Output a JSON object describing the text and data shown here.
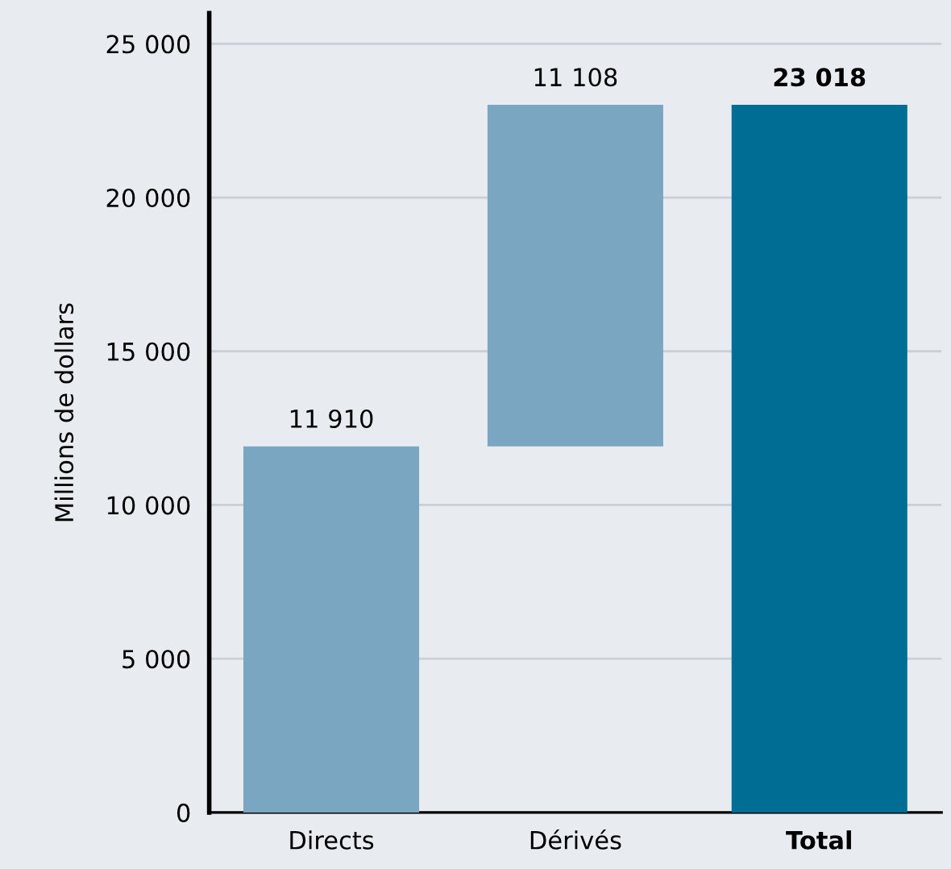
{
  "chart_data": {
    "type": "bar",
    "ylabel": "Millions de dollars",
    "categories": [
      "Directs",
      "Dérivés",
      "Total"
    ],
    "values": [
      11910,
      11108,
      23018
    ],
    "base": [
      0,
      11910,
      0
    ],
    "colors": [
      "#7ba6c2",
      "#7ba6c2",
      "#006d94"
    ],
    "value_labels": [
      "11 910",
      "11 108",
      "23 018"
    ],
    "ylim": [
      0,
      26000
    ],
    "yticks": [
      0,
      {
        "value": 5000,
        "label": "5 000"
      },
      {
        "value": 10000,
        "label": "10 000"
      },
      {
        "value": 15000,
        "label": "15 000"
      },
      {
        "value": 20000,
        "label": "20 000"
      },
      {
        "value": 25000,
        "label": "25 000"
      }
    ],
    "grid": "y"
  }
}
